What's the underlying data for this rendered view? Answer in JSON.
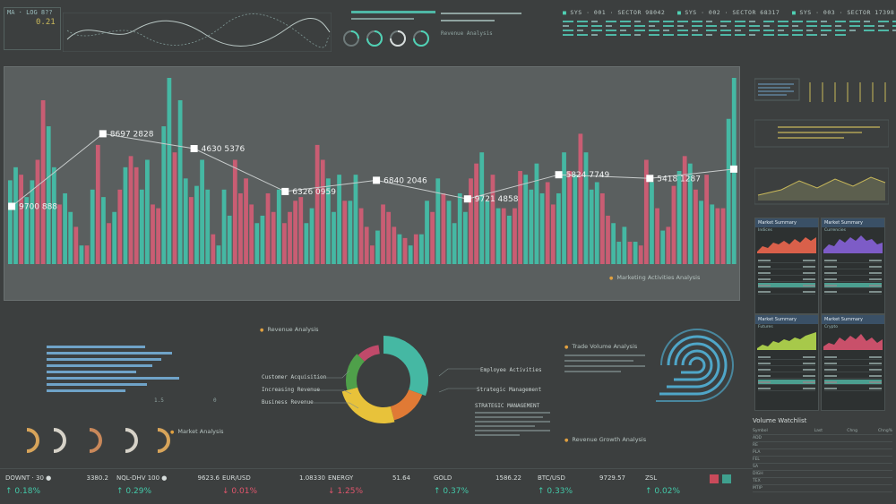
{
  "header": {
    "left_code": "MA · LOG 8??",
    "left_value": "0.21",
    "center_label": "Revenue Analysis",
    "sectors": [
      {
        "title": "SYS · 001 · SECTOR 98042"
      },
      {
        "title": "SYS · 002 · SECTOR 68317"
      },
      {
        "title": "SYS · 003 · SECTOR 17398"
      }
    ]
  },
  "main_chart": {
    "caption": "Marketing Activities Analysis",
    "colors": {
      "teal": "#45b8a3",
      "pink": "#c95d73",
      "line": "#c8cccc"
    }
  },
  "chart_data": {
    "type": "bar",
    "title": "",
    "bars": [
      [
        0.45,
        "t"
      ],
      [
        0.52,
        "t"
      ],
      [
        0.48,
        "p"
      ],
      [
        0.36,
        "t"
      ],
      [
        0.45,
        "t"
      ],
      [
        0.56,
        "p"
      ],
      [
        0.88,
        "p"
      ],
      [
        0.74,
        "t"
      ],
      [
        0.52,
        "t"
      ],
      [
        0.32,
        "p"
      ],
      [
        0.38,
        "t"
      ],
      [
        0.28,
        "t"
      ],
      [
        0.2,
        "p"
      ],
      [
        0.1,
        "t"
      ],
      [
        0.1,
        "p"
      ],
      [
        0.4,
        "t"
      ],
      [
        0.64,
        "p"
      ],
      [
        0.36,
        "t"
      ],
      [
        0.22,
        "p"
      ],
      [
        0.28,
        "t"
      ],
      [
        0.4,
        "p"
      ],
      [
        0.52,
        "t"
      ],
      [
        0.58,
        "p"
      ],
      [
        0.52,
        "p"
      ],
      [
        0.4,
        "t"
      ],
      [
        0.56,
        "t"
      ],
      [
        0.32,
        "p"
      ],
      [
        0.3,
        "p"
      ],
      [
        0.74,
        "t"
      ],
      [
        1.0,
        "t"
      ],
      [
        0.6,
        "p"
      ],
      [
        0.88,
        "t"
      ],
      [
        0.46,
        "t"
      ],
      [
        0.36,
        "p"
      ],
      [
        0.42,
        "t"
      ],
      [
        0.56,
        "t"
      ],
      [
        0.4,
        "t"
      ],
      [
        0.16,
        "p"
      ],
      [
        0.1,
        "t"
      ],
      [
        0.4,
        "t"
      ],
      [
        0.26,
        "t"
      ],
      [
        0.56,
        "p"
      ],
      [
        0.38,
        "p"
      ],
      [
        0.46,
        "p"
      ],
      [
        0.32,
        "p"
      ],
      [
        0.22,
        "t"
      ],
      [
        0.26,
        "t"
      ],
      [
        0.38,
        "p"
      ],
      [
        0.28,
        "p"
      ],
      [
        0.4,
        "t"
      ],
      [
        0.22,
        "p"
      ],
      [
        0.28,
        "p"
      ],
      [
        0.34,
        "p"
      ],
      [
        0.36,
        "p"
      ],
      [
        0.22,
        "t"
      ],
      [
        0.3,
        "t"
      ],
      [
        0.64,
        "p"
      ],
      [
        0.56,
        "p"
      ],
      [
        0.46,
        "t"
      ],
      [
        0.28,
        "t"
      ],
      [
        0.48,
        "t"
      ],
      [
        0.34,
        "p"
      ],
      [
        0.34,
        "t"
      ],
      [
        0.48,
        "t"
      ],
      [
        0.3,
        "p"
      ],
      [
        0.2,
        "p"
      ],
      [
        0.1,
        "p"
      ],
      [
        0.18,
        "t"
      ],
      [
        0.32,
        "p"
      ],
      [
        0.28,
        "p"
      ],
      [
        0.2,
        "p"
      ],
      [
        0.16,
        "t"
      ],
      [
        0.14,
        "p"
      ],
      [
        0.1,
        "t"
      ],
      [
        0.16,
        "p"
      ],
      [
        0.16,
        "t"
      ],
      [
        0.34,
        "t"
      ],
      [
        0.28,
        "p"
      ],
      [
        0.46,
        "t"
      ],
      [
        0.38,
        "p"
      ],
      [
        0.34,
        "t"
      ],
      [
        0.22,
        "t"
      ],
      [
        0.38,
        "t"
      ],
      [
        0.28,
        "t"
      ],
      [
        0.46,
        "p"
      ],
      [
        0.54,
        "p"
      ],
      [
        0.6,
        "t"
      ],
      [
        0.34,
        "t"
      ],
      [
        0.48,
        "p"
      ],
      [
        0.3,
        "t"
      ],
      [
        0.3,
        "p"
      ],
      [
        0.26,
        "t"
      ],
      [
        0.3,
        "p"
      ],
      [
        0.5,
        "p"
      ],
      [
        0.48,
        "t"
      ],
      [
        0.4,
        "t"
      ],
      [
        0.54,
        "t"
      ],
      [
        0.38,
        "t"
      ],
      [
        0.44,
        "p"
      ],
      [
        0.32,
        "p"
      ],
      [
        0.38,
        "t"
      ],
      [
        0.6,
        "t"
      ],
      [
        0.5,
        "p"
      ],
      [
        0.48,
        "t"
      ],
      [
        0.7,
        "p"
      ],
      [
        0.6,
        "t"
      ],
      [
        0.4,
        "t"
      ],
      [
        0.44,
        "t"
      ],
      [
        0.38,
        "p"
      ],
      [
        0.26,
        "p"
      ],
      [
        0.22,
        "t"
      ],
      [
        0.12,
        "t"
      ],
      [
        0.2,
        "t"
      ],
      [
        0.12,
        "p"
      ],
      [
        0.12,
        "t"
      ],
      [
        0.1,
        "p"
      ],
      [
        0.56,
        "p"
      ],
      [
        0.44,
        "t"
      ],
      [
        0.3,
        "p"
      ],
      [
        0.18,
        "t"
      ],
      [
        0.2,
        "p"
      ],
      [
        0.42,
        "p"
      ],
      [
        0.5,
        "t"
      ],
      [
        0.58,
        "p"
      ],
      [
        0.54,
        "t"
      ],
      [
        0.4,
        "p"
      ],
      [
        0.34,
        "t"
      ],
      [
        0.48,
        "p"
      ],
      [
        0.32,
        "t"
      ],
      [
        0.3,
        "p"
      ],
      [
        0.3,
        "p"
      ],
      [
        0.78,
        "t"
      ],
      [
        1.0,
        "t"
      ]
    ],
    "points": [
      {
        "pos": 0.005,
        "h": 0.31,
        "label": "9700 888"
      },
      {
        "pos": 0.13,
        "h": 0.7,
        "label": "8697 2828"
      },
      {
        "pos": 0.255,
        "h": 0.62,
        "label": "4630 5376"
      },
      {
        "pos": 0.38,
        "h": 0.39,
        "label": "6326 0959"
      },
      {
        "pos": 0.505,
        "h": 0.45,
        "label": "6840 2046"
      },
      {
        "pos": 0.63,
        "h": 0.35,
        "label": "9721 4858"
      },
      {
        "pos": 0.755,
        "h": 0.48,
        "label": "5824 7749"
      },
      {
        "pos": 0.88,
        "h": 0.46,
        "label": "5418 1287"
      },
      {
        "pos": 0.995,
        "h": 0.51,
        "label": ""
      }
    ]
  },
  "sections": {
    "revenue_analysis": "Revenue Analysis",
    "market_analysis": "Market Analysis",
    "trade_volume": "Trade Volume Analysis",
    "revenue_growth": "Revenue Growth Analysis",
    "strategic": "STRATEGIC MANAGEMENT",
    "donut_labels_left": [
      "Customer Acquisition",
      "Increasing Revenue",
      "Business Revenue"
    ],
    "donut_labels_right": [
      "Employee Activities",
      "Strategic Management"
    ],
    "axis_ticks": [
      "0",
      "1.5"
    ],
    "donut_colors": [
      "#45b8a3",
      "#e07a35",
      "#e8c23a",
      "#4fa04a",
      "#c04a6a"
    ]
  },
  "right_panels": {
    "market_summary": [
      {
        "title": "Market Summary",
        "sub": "Indices",
        "color": "#d9604a"
      },
      {
        "title": "Market Summary",
        "sub": "Currencies",
        "color": "#7d5cc7"
      },
      {
        "title": "Market Summary",
        "sub": "Futures",
        "color": "#a7c94a"
      },
      {
        "title": "Market Summary",
        "sub": "Crypto",
        "color": "#c9506a"
      }
    ]
  },
  "ticker": [
    {
      "sym": "DOWNT · 30 ●",
      "price": "3380.2",
      "chg": "0.18%",
      "dir": "up"
    },
    {
      "sym": "NQL-DHV 100 ●",
      "price": "9623.6",
      "chg": "0.29%",
      "dir": "up"
    },
    {
      "sym": "EUR/USD",
      "price": "1.08330",
      "chg": "0.01%",
      "dir": "down"
    },
    {
      "sym": "ENERGY",
      "price": "51.64",
      "chg": "1.25%",
      "dir": "down"
    },
    {
      "sym": "GOLD",
      "price": "1586.22",
      "chg": "0.37%",
      "dir": "up"
    },
    {
      "sym": "BTC/USD",
      "price": "9729.57",
      "chg": "0.33%",
      "dir": "up"
    },
    {
      "sym": "ZSL",
      "price": "",
      "chg": "0.02%",
      "dir": "up"
    }
  ],
  "watchlist": {
    "title": "Volume Watchlist",
    "headers": [
      "Symbol",
      "Last",
      "Chng",
      "Chng%"
    ],
    "rows": [
      [
        "ADD",
        "",
        "",
        ""
      ],
      [
        "RE",
        "",
        "",
        ""
      ],
      [
        "PLA",
        "",
        "",
        ""
      ],
      [
        "FEL",
        "",
        "",
        ""
      ],
      [
        "SA",
        "",
        "",
        ""
      ],
      [
        "DIGH",
        "",
        "",
        ""
      ],
      [
        "TEX",
        "",
        "",
        ""
      ],
      [
        "MTIP",
        "",
        "",
        ""
      ]
    ]
  }
}
